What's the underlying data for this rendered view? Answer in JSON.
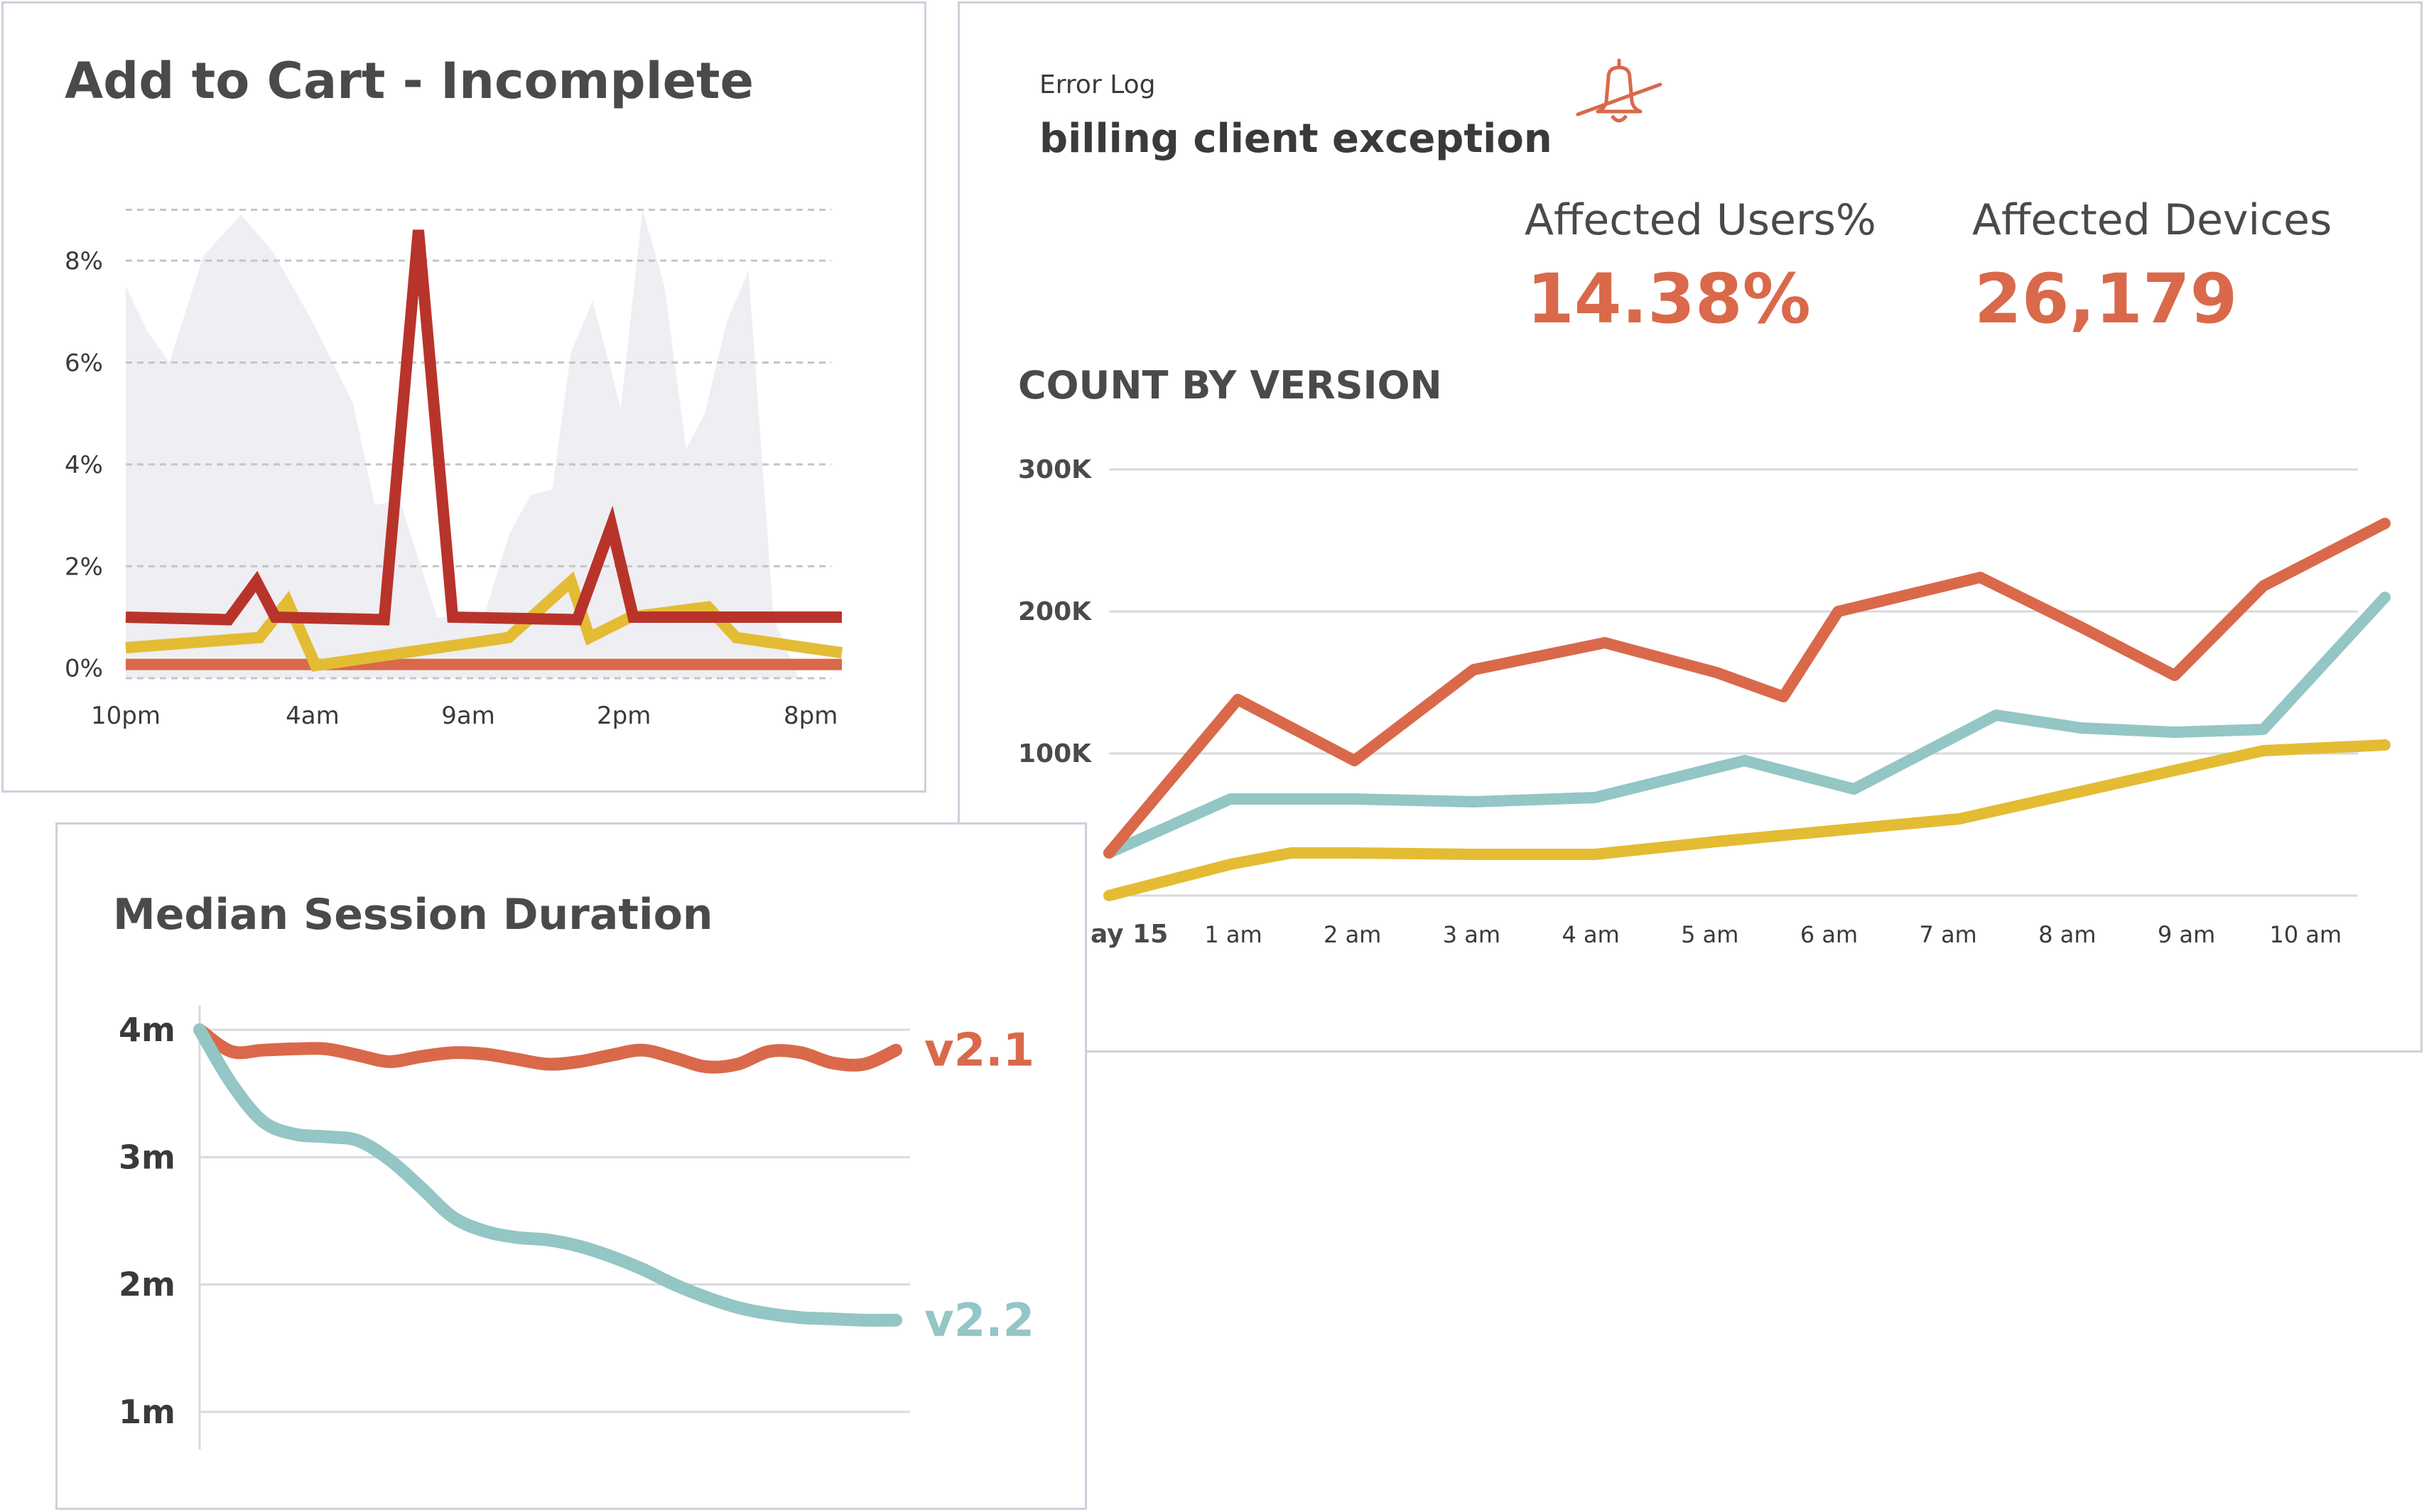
{
  "colors": {
    "orange": "#d9694a",
    "red": "#b8342a",
    "yellow": "#e3bc34",
    "teal": "#93c6c5",
    "grey_area": "#eeeef3",
    "grid": "#d8d8df",
    "text": "#4a4a4a"
  },
  "cart_panel": {
    "title": "Add to Cart - Incomplete"
  },
  "error_panel": {
    "label": "Error Log",
    "title": "billing client exception",
    "icon": "bell-off-icon",
    "affected_users_label": "Affected Users%",
    "affected_users_value": "14.38%",
    "affected_devices_label": "Affected Devices",
    "affected_devices_value": "26,179",
    "chart_title": "COUNT BY VERSION"
  },
  "session_panel": {
    "title": "Median Session Duration"
  },
  "chart_data": [
    {
      "type": "area",
      "title": "Add to Cart - Incomplete",
      "xlabel": "",
      "ylabel": "",
      "x": [
        0,
        1,
        2,
        3,
        4,
        5,
        6,
        7,
        8,
        9,
        10,
        11,
        12,
        13,
        14,
        15,
        16,
        17,
        18,
        19,
        20,
        21,
        22,
        23
      ],
      "x_ticks": [
        {
          "x": 0,
          "label": "10pm"
        },
        {
          "x": 6,
          "label": "4am"
        },
        {
          "x": 11,
          "label": "9am"
        },
        {
          "x": 16,
          "label": "2pm"
        },
        {
          "x": 22,
          "label": "8pm"
        }
      ],
      "y_ticks": [
        {
          "y": 0,
          "label": "0%"
        },
        {
          "y": 2,
          "label": "2%"
        },
        {
          "y": 4,
          "label": "4%"
        },
        {
          "y": 6,
          "label": "6%"
        },
        {
          "y": 8,
          "label": "8%"
        }
      ],
      "ylim": [
        -0.2,
        9.2
      ],
      "grid": true,
      "background_area": {
        "x": [
          0,
          0.7,
          1.4,
          2.5,
          3.7,
          4.7,
          6.0,
          7.3,
          8.0,
          8.8,
          10.0,
          11.5,
          12.3,
          13.0,
          13.7,
          14.3,
          15.0,
          15.9,
          16.6,
          17.3,
          18.0,
          18.6,
          19.3,
          20.0,
          20.8,
          21.6,
          22.1,
          22.7,
          23
        ],
        "values": [
          7.5,
          6.6,
          6.0,
          8.1,
          8.9,
          8.2,
          6.8,
          5.2,
          3.2,
          3.3,
          1.0,
          1.0,
          2.6,
          3.4,
          3.5,
          6.2,
          7.2,
          5.1,
          9.0,
          7.5,
          4.3,
          5.0,
          6.8,
          7.8,
          1.0,
          -0.2,
          -0.2,
          -0.2,
          -0.2
        ]
      },
      "series": [
        {
          "color": "#b8342a",
          "x": [
            0,
            3.3,
            4.2,
            4.8,
            8.3,
            9.4,
            10.5,
            14.5,
            15.6,
            16.3,
            23
          ],
          "values": [
            1.0,
            0.95,
            1.7,
            1.0,
            0.95,
            8.6,
            1.0,
            0.95,
            2.8,
            1.0,
            1.0
          ]
        },
        {
          "color": "#e3bc34",
          "x": [
            0,
            4.3,
            5.2,
            6.1,
            12.3,
            14.3,
            14.9,
            16.2,
            18.7,
            19.6,
            23
          ],
          "values": [
            0.4,
            0.6,
            1.3,
            0.05,
            0.6,
            1.7,
            0.6,
            1.0,
            1.2,
            0.6,
            0.3
          ]
        },
        {
          "color": "#d9694a",
          "x": [
            0,
            23
          ],
          "values": [
            0.07,
            0.07
          ]
        }
      ]
    },
    {
      "type": "line",
      "title": "COUNT BY VERSION",
      "xlabel": "",
      "ylabel": "",
      "x": [
        0,
        1,
        2,
        3,
        4,
        5,
        6,
        7,
        8,
        9,
        10,
        11
      ],
      "x_tick_labels": [
        "ay 15",
        "1 am",
        "2 am",
        "3 am",
        "4 am",
        "5 am",
        "6 am",
        "7 am",
        "8 am",
        "9 am",
        "10 am",
        ""
      ],
      "y_ticks": [
        {
          "y": 100000,
          "label": "100K"
        },
        {
          "y": 200000,
          "label": "200K"
        },
        {
          "y": 300000,
          "label": "300K"
        }
      ],
      "ylim": [
        0,
        300000
      ],
      "grid": true,
      "series": [
        {
          "color": "#d9694a",
          "x": [
            0,
            1.06,
            2.02,
            3.0,
            4.08,
            5.0,
            5.55,
            6.0,
            7.17,
            8.0,
            8.77,
            9.5,
            10.5
          ],
          "values": [
            30000,
            138000,
            95000,
            159000,
            178000,
            157000,
            140000,
            200000,
            224000,
            189000,
            155000,
            218000,
            262000
          ]
        },
        {
          "color": "#93c6c5",
          "x": [
            0,
            1.0,
            2.0,
            3.0,
            4.0,
            5.23,
            6.13,
            7.3,
            8.0,
            8.77,
            9.5,
            10.5
          ],
          "values": [
            30000,
            68000,
            68000,
            66000,
            69000,
            95000,
            75000,
            127000,
            118000,
            115000,
            117000,
            210000
          ]
        },
        {
          "color": "#e3bc34",
          "x": [
            0,
            1.0,
            1.5,
            2.0,
            3.0,
            4.0,
            5.0,
            6.0,
            7.0,
            7.83,
            8.66,
            9.5,
            10.5
          ],
          "values": [
            0,
            22000,
            30000,
            30000,
            29000,
            29000,
            38000,
            46000,
            54000,
            70000,
            86000,
            102000,
            106000
          ]
        }
      ]
    },
    {
      "type": "line",
      "title": "Median Session Duration",
      "xlabel": "",
      "ylabel": "",
      "x": [
        0,
        1,
        2,
        3,
        4,
        5,
        6,
        7,
        8,
        9,
        10,
        11,
        12,
        13,
        14,
        15,
        16,
        17,
        18,
        19,
        20,
        21,
        22
      ],
      "y_ticks": [
        {
          "y": 1,
          "label": "1m"
        },
        {
          "y": 2,
          "label": "2m"
        },
        {
          "y": 3,
          "label": "3m"
        },
        {
          "y": 4,
          "label": "4m"
        }
      ],
      "ylim": [
        0.7,
        4.1
      ],
      "grid": true,
      "series": [
        {
          "name": "v2.1",
          "color": "#d9694a",
          "values": [
            4.0,
            3.83,
            3.84,
            3.85,
            3.85,
            3.8,
            3.75,
            3.79,
            3.82,
            3.81,
            3.77,
            3.73,
            3.75,
            3.8,
            3.84,
            3.78,
            3.71,
            3.73,
            3.83,
            3.82,
            3.74,
            3.73,
            3.84
          ]
        },
        {
          "name": "v2.2",
          "color": "#93c6c5",
          "values": [
            4.0,
            3.58,
            3.28,
            3.18,
            3.16,
            3.13,
            2.98,
            2.76,
            2.53,
            2.42,
            2.37,
            2.35,
            2.3,
            2.22,
            2.12,
            2.0,
            1.9,
            1.82,
            1.77,
            1.74,
            1.73,
            1.72,
            1.72
          ]
        }
      ]
    }
  ]
}
